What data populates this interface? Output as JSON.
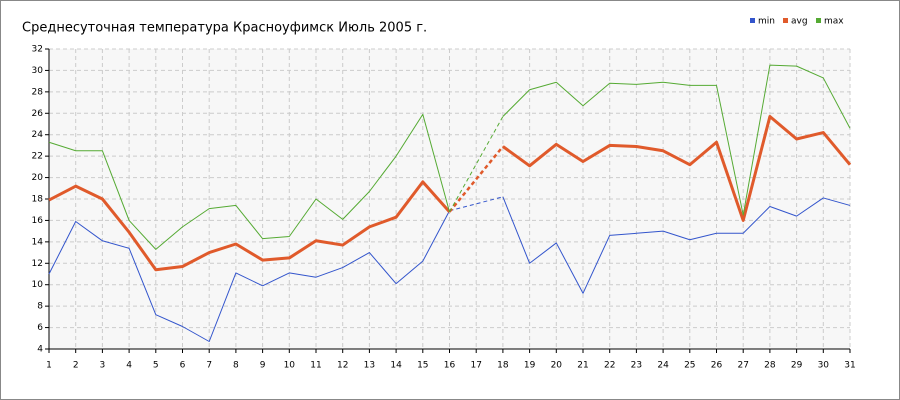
{
  "chart_data": {
    "type": "line",
    "title": "Среднесуточная температура Красноуфимск  Июль 2005 г.",
    "x": [
      1,
      2,
      3,
      4,
      5,
      6,
      7,
      8,
      9,
      10,
      11,
      12,
      13,
      14,
      15,
      16,
      17,
      18,
      19,
      20,
      21,
      22,
      23,
      24,
      25,
      26,
      27,
      28,
      29,
      30,
      31
    ],
    "xlim": [
      1,
      31
    ],
    "xticks": [
      1,
      2,
      3,
      4,
      5,
      6,
      7,
      8,
      9,
      10,
      11,
      12,
      13,
      14,
      15,
      16,
      17,
      18,
      19,
      20,
      21,
      22,
      23,
      24,
      25,
      26,
      27,
      28,
      29,
      30,
      31
    ],
    "ylim": [
      4,
      32
    ],
    "yticks": [
      4,
      6,
      8,
      10,
      12,
      14,
      16,
      18,
      20,
      22,
      24,
      26,
      28,
      30,
      32
    ],
    "grid": true,
    "legend": "top-right",
    "series": [
      {
        "name": "min",
        "color": "#3355cc",
        "values": [
          11,
          15.9,
          14.1,
          13.4,
          7.2,
          6.1,
          4.7,
          11.1,
          9.9,
          11.1,
          10.7,
          11.6,
          13,
          10.1,
          12.2,
          16.9,
          null,
          18.2,
          12,
          13.9,
          9.2,
          14.6,
          14.8,
          15,
          14.2,
          14.8,
          14.8,
          17.3,
          16.4,
          18.1,
          17.4
        ]
      },
      {
        "name": "avg",
        "color": "#e05a2b",
        "values": [
          17.9,
          19.2,
          18,
          14.9,
          11.4,
          11.7,
          13,
          13.8,
          12.3,
          12.5,
          14.1,
          13.7,
          15.4,
          16.3,
          19.6,
          16.8,
          null,
          22.9,
          21.1,
          23.1,
          21.5,
          23,
          22.9,
          22.5,
          21.2,
          23.3,
          16,
          25.7,
          23.6,
          24.2,
          21.2
        ]
      },
      {
        "name": "max",
        "color": "#55aa33",
        "values": [
          23.3,
          22.5,
          22.5,
          16,
          13.3,
          15.4,
          17.1,
          17.4,
          14.3,
          14.5,
          18,
          16.1,
          18.7,
          22,
          25.9,
          16.8,
          null,
          25.7,
          28.2,
          28.9,
          26.7,
          28.8,
          28.7,
          28.9,
          28.6,
          28.6,
          16.5,
          30.5,
          30.4,
          29.3,
          24.6
        ]
      }
    ]
  }
}
